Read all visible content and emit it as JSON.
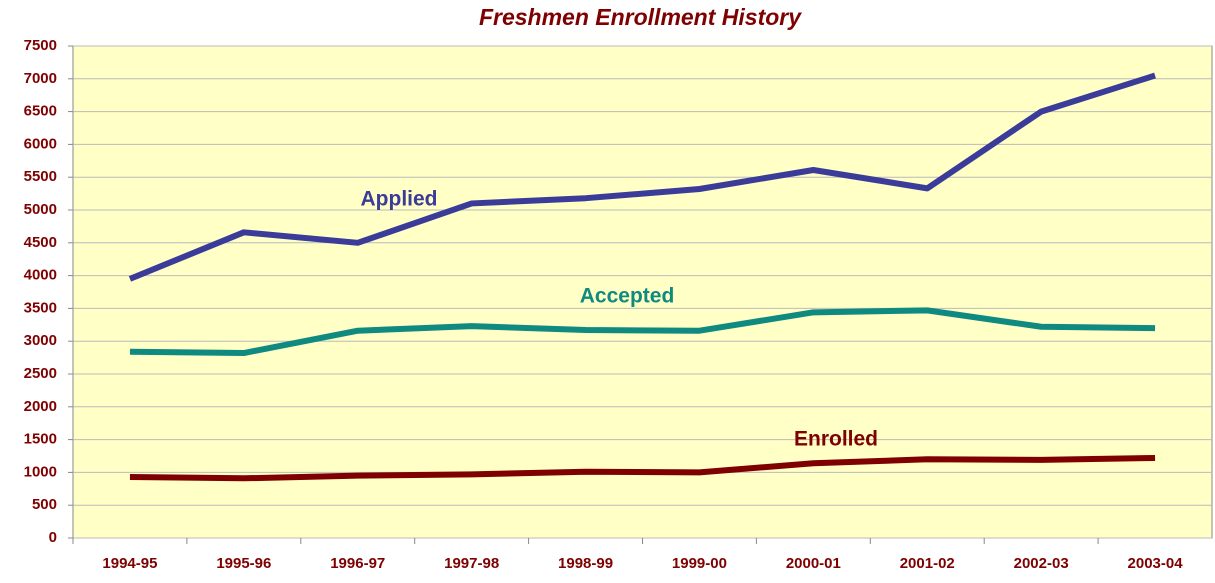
{
  "chart_data": {
    "type": "line",
    "title": "Freshmen Enrollment History",
    "categories": [
      "1994-95",
      "1995-96",
      "1996-97",
      "1997-98",
      "1998-99",
      "1999-00",
      "2000-01",
      "2001-02",
      "2002-03",
      "2003-04"
    ],
    "series": [
      {
        "name": "Applied",
        "color": "#3b3b9a",
        "values": [
          3950,
          4660,
          4500,
          5100,
          5180,
          5320,
          5610,
          5330,
          6500,
          7050
        ]
      },
      {
        "name": "Accepted",
        "color": "#0f8a80",
        "values": [
          2840,
          2820,
          3160,
          3230,
          3170,
          3160,
          3440,
          3470,
          3220,
          3200
        ]
      },
      {
        "name": "Enrolled",
        "color": "#7f0000",
        "values": [
          930,
          910,
          950,
          970,
          1010,
          1000,
          1140,
          1200,
          1190,
          1220
        ]
      }
    ],
    "ylim": [
      0,
      7500
    ],
    "yticks": [
      0,
      500,
      1000,
      1500,
      2000,
      2500,
      3000,
      3500,
      4000,
      4500,
      5000,
      5500,
      6000,
      6500,
      7000,
      7500
    ],
    "grid": true
  }
}
